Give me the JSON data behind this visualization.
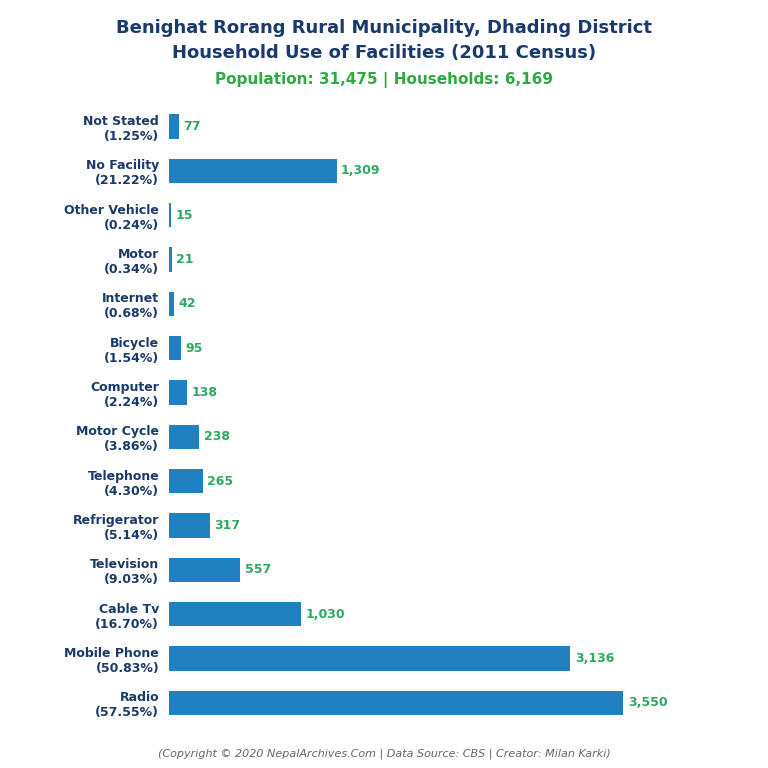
{
  "title_line1": "Benighat Rorang Rural Municipality, Dhading District",
  "title_line2": "Household Use of Facilities (2011 Census)",
  "subtitle": "Population: 31,475 | Households: 6,169",
  "footer": "(Copyright © 2020 NepalArchives.Com | Data Source: CBS | Creator: Milan Karki)",
  "categories": [
    "Not Stated\n(1.25%)",
    "No Facility\n(21.22%)",
    "Other Vehicle\n(0.24%)",
    "Motor\n(0.34%)",
    "Internet\n(0.68%)",
    "Bicycle\n(1.54%)",
    "Computer\n(2.24%)",
    "Motor Cycle\n(3.86%)",
    "Telephone\n(4.30%)",
    "Refrigerator\n(5.14%)",
    "Television\n(9.03%)",
    "Cable Tv\n(16.70%)",
    "Mobile Phone\n(50.83%)",
    "Radio\n(57.55%)"
  ],
  "values": [
    77,
    1309,
    15,
    21,
    42,
    95,
    138,
    238,
    265,
    317,
    557,
    1030,
    3136,
    3550
  ],
  "bar_color": "#2080C0",
  "label_color": "#2EAA60",
  "title_color": "#1A3A6B",
  "subtitle_color": "#2EAA40",
  "footer_color": "#666666",
  "bg_color": "#FFFFFF",
  "xlim": [
    0,
    4200
  ],
  "bar_height": 0.55,
  "title_fontsize": 13.0,
  "subtitle_fontsize": 11,
  "label_fontsize": 9,
  "ytick_fontsize": 9,
  "footer_fontsize": 8
}
